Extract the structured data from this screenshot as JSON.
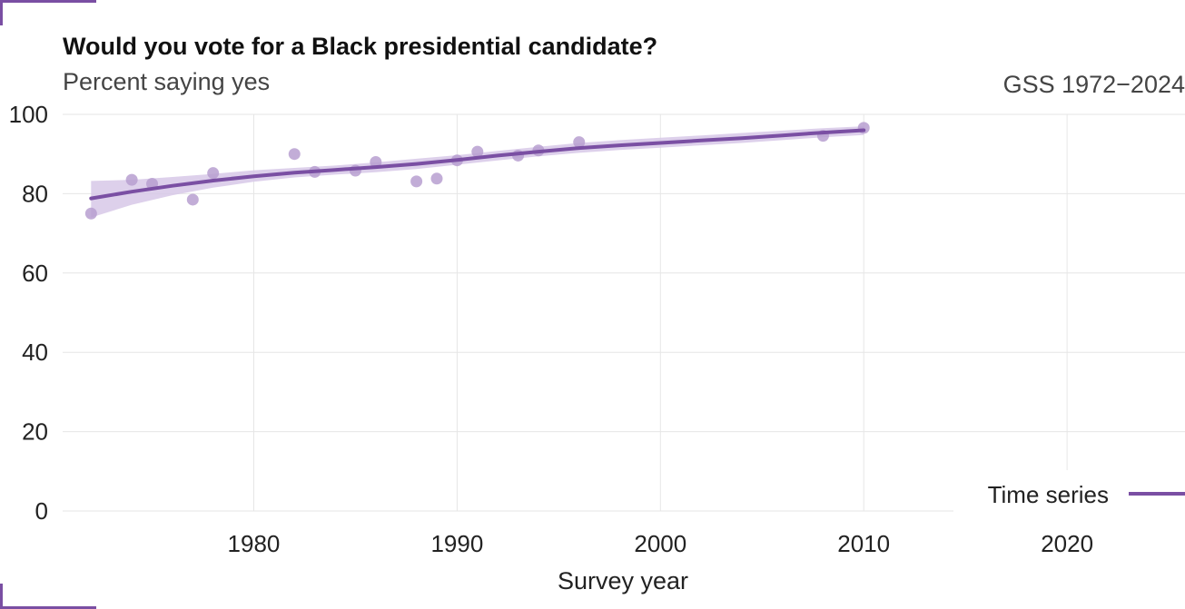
{
  "chart_data": {
    "type": "scatter",
    "title": "Would you vote for a Black presidential candidate?",
    "subtitle": "Percent saying yes",
    "caption": "GSS 1972−2024",
    "xlabel": "Survey year",
    "ylabel": "",
    "xlim": [
      1970.6,
      2025.8
    ],
    "ylim": [
      0,
      100
    ],
    "x_ticks": [
      1980,
      1990,
      2000,
      2010,
      2020
    ],
    "y_ticks": [
      0,
      20,
      40,
      60,
      80,
      100
    ],
    "grid": true,
    "legend_position": "bottom-right",
    "colors": {
      "accent": "#7a4fa3",
      "points": "#b79fd0",
      "band": "#d7c8e8",
      "grid": "#e6e6e6"
    },
    "series": [
      {
        "kind": "points",
        "x": [
          1972,
          1974,
          1975,
          1977,
          1978,
          1982,
          1983,
          1985,
          1986,
          1988,
          1989,
          1990,
          1991,
          1993,
          1994,
          1996,
          2008,
          2010
        ],
        "y": [
          75.0,
          83.5,
          82.5,
          78.5,
          85.2,
          90.0,
          85.5,
          85.8,
          88.0,
          83.1,
          83.8,
          88.4,
          90.6,
          89.6,
          90.9,
          93.0,
          94.6,
          96.6
        ]
      },
      {
        "kind": "smooth",
        "name": "Time series",
        "x": [
          1972,
          1974,
          1976,
          1978,
          1980,
          1982,
          1984,
          1986,
          1988,
          1990,
          1992,
          1994,
          1996,
          1998,
          2000,
          2002,
          2004,
          2006,
          2008,
          2010
        ],
        "y": [
          78.8,
          80.5,
          82.0,
          83.3,
          84.4,
          85.3,
          86.0,
          86.7,
          87.5,
          88.5,
          89.6,
          90.6,
          91.5,
          92.2,
          92.8,
          93.4,
          94.0,
          94.7,
          95.4,
          96.0
        ],
        "lower": [
          74.0,
          77.2,
          79.6,
          81.5,
          83.0,
          84.1,
          84.8,
          85.4,
          86.2,
          87.3,
          88.4,
          89.4,
          90.3,
          91.0,
          91.6,
          92.2,
          92.8,
          93.5,
          94.2,
          94.8
        ],
        "upper": [
          83.2,
          83.5,
          84.2,
          85.0,
          85.9,
          86.5,
          87.1,
          87.9,
          88.8,
          89.7,
          90.8,
          91.8,
          92.8,
          93.5,
          94.1,
          94.7,
          95.3,
          95.9,
          96.5,
          97.0
        ]
      }
    ]
  }
}
